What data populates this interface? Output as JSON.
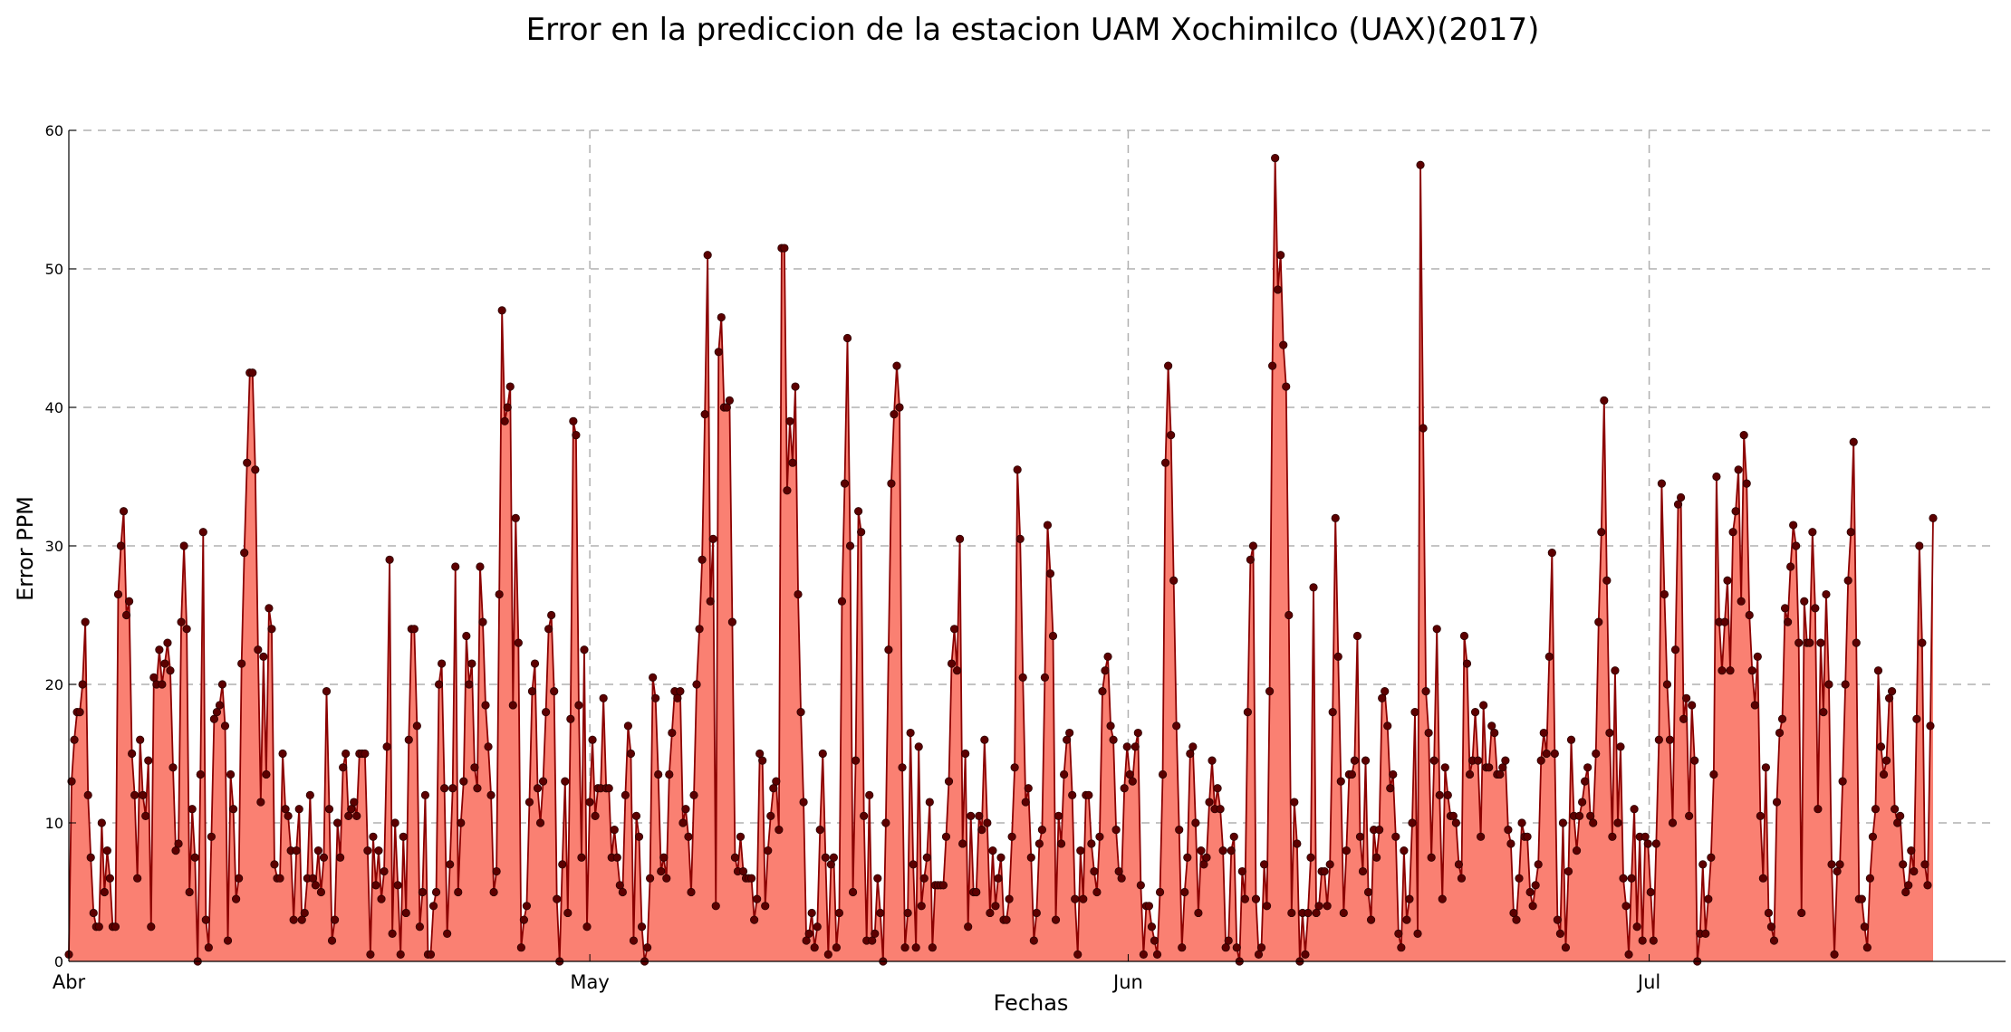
{
  "colors": {
    "area": "#fa8072",
    "line": "#8b0000",
    "marker": "#5c0000",
    "marker_edge": "#2b0000",
    "grid": "#b0b0b0"
  },
  "chart_data": {
    "type": "area",
    "title": "Error en la prediccion de la estacion UAM Xochimilco (UAX)(2017)",
    "xlabel": "Fechas",
    "ylabel": "Error PPM",
    "ylim": [
      0,
      60
    ],
    "y_ticks": [
      0,
      10,
      20,
      30,
      40,
      50,
      60
    ],
    "x_ticks": [
      {
        "label": "Abr",
        "date": "2017-04-01"
      },
      {
        "label": "May",
        "date": "2017-05-01"
      },
      {
        "label": "Jun",
        "date": "2017-06-01"
      },
      {
        "label": "Jul",
        "date": "2017-07-01"
      }
    ],
    "x_start": "2017-04-01",
    "x_end": "2017-07-21",
    "grid": true,
    "markers": true,
    "values": [
      0.5,
      13.0,
      16.0,
      18.0,
      18.0,
      20.0,
      24.5,
      12.0,
      7.5,
      3.5,
      2.5,
      2.5,
      10.0,
      5.0,
      8.0,
      6.0,
      2.5,
      2.5,
      26.5,
      30.0,
      32.5,
      25.0,
      26.0,
      15.0,
      12.0,
      6.0,
      16.0,
      12.0,
      10.5,
      14.5,
      2.5,
      20.5,
      20.0,
      22.5,
      20.0,
      21.5,
      23.0,
      21.0,
      14.0,
      8.0,
      8.5,
      24.5,
      30.0,
      24.0,
      5.0,
      11.0,
      7.5,
      0.0,
      13.5,
      31.0,
      3.0,
      1.0,
      9.0,
      17.5,
      18.0,
      18.5,
      20.0,
      17.0,
      1.5,
      13.5,
      11.0,
      4.5,
      6.0,
      21.5,
      29.5,
      36.0,
      42.5,
      42.5,
      35.5,
      22.5,
      11.5,
      22.0,
      13.5,
      25.5,
      24.0,
      7.0,
      6.0,
      6.0,
      15.0,
      11.0,
      10.5,
      8.0,
      3.0,
      8.0,
      11.0,
      3.0,
      3.5,
      6.0,
      12.0,
      6.0,
      5.5,
      8.0,
      5.0,
      7.5,
      19.5,
      11.0,
      1.5,
      3.0,
      10.0,
      7.5,
      14.0,
      15.0,
      10.5,
      11.0,
      11.5,
      10.5,
      15.0,
      15.0,
      15.0,
      8.0,
      0.5,
      9.0,
      5.5,
      8.0,
      4.5,
      6.5,
      15.5,
      29.0,
      2.0,
      10.0,
      5.5,
      0.5,
      9.0,
      3.5,
      16.0,
      24.0,
      24.0,
      17.0,
      2.5,
      5.0,
      12.0,
      0.5,
      0.5,
      4.0,
      5.0,
      20.0,
      21.5,
      12.5,
      2.0,
      7.0,
      12.5,
      28.5,
      5.0,
      10.0,
      13.0,
      23.5,
      20.0,
      21.5,
      14.0,
      12.5,
      28.5,
      24.5,
      18.5,
      15.5,
      12.0,
      5.0,
      6.5,
      26.5,
      47.0,
      39.0,
      40.0,
      41.5,
      18.5,
      32.0,
      23.0,
      1.0,
      3.0,
      4.0,
      11.5,
      19.5,
      21.5,
      12.5,
      10.0,
      13.0,
      18.0,
      24.0,
      25.0,
      19.5,
      4.5,
      0.0,
      7.0,
      13.0,
      3.5,
      17.5,
      39.0,
      38.0,
      18.5,
      7.5,
      22.5,
      2.5,
      11.5,
      16.0,
      10.5,
      12.5,
      12.5,
      19.0,
      12.5,
      12.5,
      7.5,
      9.5,
      7.5,
      5.5,
      5.0,
      12.0,
      17.0,
      15.0,
      1.5,
      10.5,
      9.0,
      2.5,
      0.0,
      1.0,
      6.0,
      20.5,
      19.0,
      13.5,
      6.5,
      7.5,
      6.0,
      13.5,
      16.5,
      19.5,
      19.0,
      19.5,
      10.0,
      11.0,
      9.0,
      5.0,
      12.0,
      20.0,
      24.0,
      29.0,
      39.5,
      51.0,
      26.0,
      30.5,
      4.0,
      44.0,
      46.5,
      40.0,
      40.0,
      40.5,
      24.5,
      7.5,
      6.5,
      9.0,
      6.5,
      6.0,
      6.0,
      6.0,
      3.0,
      4.5,
      15.0,
      14.5,
      4.0,
      8.0,
      10.5,
      12.5,
      13.0,
      9.5,
      51.5,
      51.5,
      34.0,
      39.0,
      36.0,
      41.5,
      26.5,
      18.0,
      11.5,
      1.5,
      2.0,
      3.5,
      1.0,
      2.5,
      9.5,
      15.0,
      7.5,
      0.5,
      7.0,
      7.5,
      1.0,
      3.5,
      26.0,
      34.5,
      45.0,
      30.0,
      5.0,
      14.5,
      32.5,
      31.0,
      10.5,
      1.5,
      12.0,
      1.5,
      2.0,
      6.0,
      3.5,
      0.0,
      10.0,
      22.5,
      34.5,
      39.5,
      43.0,
      40.0,
      14.0,
      1.0,
      3.5,
      16.5,
      7.0,
      1.0,
      15.5,
      4.0,
      6.0,
      7.5,
      11.5,
      1.0,
      5.5,
      5.5,
      5.5,
      5.5,
      9.0,
      13.0,
      21.5,
      24.0,
      21.0,
      30.5,
      8.5,
      15.0,
      2.5,
      10.5,
      5.0,
      5.0,
      10.5,
      9.5,
      16.0,
      10.0,
      3.5,
      8.0,
      4.0,
      6.0,
      7.5,
      3.0,
      3.0,
      4.5,
      9.0,
      14.0,
      35.5,
      30.5,
      20.5,
      11.5,
      12.5,
      7.5,
      1.5,
      3.5,
      8.5,
      9.5,
      20.5,
      31.5,
      28.0,
      23.5,
      3.0,
      10.5,
      8.5,
      13.5,
      16.0,
      16.5,
      12.0,
      4.5,
      0.5,
      8.0,
      4.5,
      12.0,
      12.0,
      8.5,
      6.5,
      5.0,
      9.0,
      19.5,
      21.0,
      22.0,
      17.0,
      16.0,
      9.5,
      6.5,
      6.0,
      12.5,
      15.5,
      13.5,
      13.0,
      15.5,
      16.5,
      5.5,
      0.5,
      4.0,
      4.0,
      2.5,
      1.5,
      0.5,
      5.0,
      13.5,
      36.0,
      43.0,
      38.0,
      27.5,
      17.0,
      9.5,
      1.0,
      5.0,
      7.5,
      15.0,
      15.5,
      10.0,
      3.5,
      8.0,
      7.0,
      7.5,
      11.5,
      14.5,
      11.0,
      12.5,
      11.0,
      8.0,
      1.0,
      1.5,
      8.0,
      9.0,
      1.0,
      0.0,
      6.5,
      4.5,
      18.0,
      29.0,
      30.0,
      4.5,
      0.5,
      1.0,
      7.0,
      4.0,
      19.5,
      43.0,
      58.0,
      48.5,
      51.0,
      44.5,
      41.5,
      25.0,
      3.5,
      11.5,
      8.5,
      0.0,
      3.5,
      0.5,
      3.5,
      7.5,
      27.0,
      3.5,
      4.0,
      6.5,
      6.5,
      4.0,
      7.0,
      18.0,
      32.0,
      22.0,
      13.0,
      3.5,
      8.0,
      13.5,
      13.5,
      14.5,
      23.5,
      9.0,
      6.5,
      14.5,
      5.0,
      3.0,
      9.5,
      7.5,
      9.5,
      19.0,
      19.5,
      17.0,
      12.5,
      13.5,
      9.0,
      2.0,
      1.0,
      8.0,
      3.0,
      4.5,
      10.0,
      18.0,
      2.0,
      57.5,
      38.5,
      19.5,
      16.5,
      7.5,
      14.5,
      24.0,
      12.0,
      4.5,
      14.0,
      12.0,
      10.5,
      10.5,
      10.0,
      7.0,
      6.0,
      23.5,
      21.5,
      13.5,
      14.5,
      18.0,
      14.5,
      9.0,
      18.5,
      14.0,
      14.0,
      17.0,
      16.5,
      13.5,
      13.5,
      14.0,
      14.5,
      9.5,
      8.5,
      3.5,
      3.0,
      6.0,
      10.0,
      9.0,
      9.0,
      5.0,
      4.0,
      5.5,
      7.0,
      14.5,
      16.5,
      15.0,
      22.0,
      29.5,
      15.0,
      3.0,
      2.0,
      10.0,
      1.0,
      6.5,
      16.0,
      10.5,
      8.0,
      10.5,
      11.5,
      13.0,
      14.0,
      10.5,
      10.0,
      15.0,
      24.5,
      31.0,
      40.5,
      27.5,
      16.5,
      9.0,
      21.0,
      10.0,
      15.5,
      6.0,
      4.0,
      0.5,
      6.0,
      11.0,
      2.5,
      9.0,
      1.5,
      9.0,
      8.5,
      5.0,
      1.5,
      8.5,
      16.0,
      34.5,
      26.5,
      20.0,
      16.0,
      10.0,
      22.5,
      33.0,
      33.5,
      17.5,
      19.0,
      10.5,
      18.5,
      14.5,
      0.0,
      2.0,
      7.0,
      2.0,
      4.5,
      7.5,
      13.5,
      35.0,
      24.5,
      21.0,
      24.5,
      27.5,
      21.0,
      31.0,
      32.5,
      35.5,
      26.0,
      38.0,
      34.5,
      25.0,
      21.0,
      18.5,
      22.0,
      10.5,
      6.0,
      14.0,
      3.5,
      2.5,
      1.5,
      11.5,
      16.5,
      17.5,
      25.5,
      24.5,
      28.5,
      31.5,
      30.0,
      23.0,
      3.5,
      26.0,
      23.0,
      23.0,
      31.0,
      25.5,
      11.0,
      23.0,
      18.0,
      26.5,
      20.0,
      7.0,
      0.5,
      6.5,
      7.0,
      13.0,
      20.0,
      27.5,
      31.0,
      37.5,
      23.0,
      4.5,
      4.5,
      2.5,
      1.0,
      6.0,
      9.0,
      11.0,
      21.0,
      15.5,
      13.5,
      14.5,
      19.0,
      19.5,
      11.0,
      10.0,
      10.5,
      7.0,
      5.0,
      5.5,
      8.0,
      6.5,
      17.5,
      30.0,
      23.0,
      7.0,
      5.5,
      17.0,
      32.0
    ]
  }
}
